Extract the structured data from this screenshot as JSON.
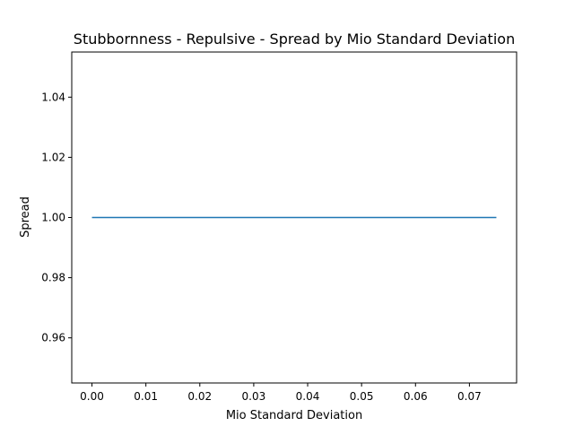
{
  "chart_data": {
    "type": "line",
    "title": "Stubbornness - Repulsive - Spread by Mio Standard Deviation",
    "xlabel": "Mio Standard Deviation",
    "ylabel": "Spread",
    "xlim": [
      -0.00375,
      0.07875
    ],
    "ylim": [
      0.945,
      1.055
    ],
    "xticks": [
      0.0,
      0.01,
      0.02,
      0.03,
      0.04,
      0.05,
      0.06,
      0.07
    ],
    "xtick_labels": [
      "0.00",
      "0.01",
      "0.02",
      "0.03",
      "0.04",
      "0.05",
      "0.06",
      "0.07"
    ],
    "yticks": [
      0.96,
      0.98,
      1.0,
      1.02,
      1.04
    ],
    "ytick_labels": [
      "0.96",
      "0.98",
      "1.00",
      "1.02",
      "1.04"
    ],
    "grid": false,
    "legend": "none",
    "series": [
      {
        "color": "#1f77b4",
        "x": [
          0.0,
          0.075
        ],
        "y": [
          1.0,
          1.0
        ]
      }
    ]
  }
}
